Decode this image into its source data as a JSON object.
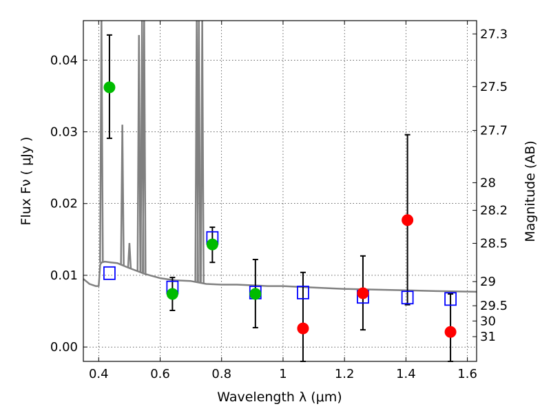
{
  "chart_data": {
    "type": "scatter",
    "xlabel": "Wavelength  λ (μm)",
    "ylabel": "Flux  Fν  ( μJy )",
    "y2label": "Magnitude (AB)",
    "xlim": [
      0.35,
      1.63
    ],
    "ylim": [
      -0.002,
      0.0455
    ],
    "grid": true,
    "x_ticks": [
      0.4,
      0.6,
      0.8,
      1.0,
      1.2,
      1.4,
      1.6
    ],
    "x_tick_labels": [
      "0.4",
      "0.6",
      "0.8",
      "1",
      "1.2",
      "1.4",
      "1.6"
    ],
    "y_ticks": [
      0.0,
      0.01,
      0.02,
      0.03,
      0.04
    ],
    "y_tick_labels": [
      "0.00",
      "0.01",
      "0.02",
      "0.03",
      "0.04"
    ],
    "mag_ticks": [
      "27.3",
      "27.5",
      "27.7",
      "28",
      "28.2",
      "28.5",
      "29",
      "29.5",
      "30",
      "31"
    ],
    "model_spectrum": {
      "color": "#808080",
      "x": [
        0.35,
        0.37,
        0.39,
        0.4,
        0.405,
        0.41,
        0.42,
        0.44,
        0.46,
        0.5,
        0.55,
        0.6,
        0.65,
        0.7,
        0.75,
        0.8,
        0.85,
        0.9,
        0.95,
        1.0,
        1.1,
        1.2,
        1.3,
        1.4,
        1.5,
        1.63
      ],
      "y": [
        0.0095,
        0.0088,
        0.0085,
        0.0085,
        0.0115,
        0.0118,
        0.0119,
        0.0118,
        0.0117,
        0.011,
        0.0102,
        0.0096,
        0.0093,
        0.0092,
        0.0088,
        0.0087,
        0.0087,
        0.0086,
        0.0085,
        0.0085,
        0.0083,
        0.0081,
        0.008,
        0.0079,
        0.0078,
        0.0077
      ],
      "emission_lines": [
        {
          "x": 0.409,
          "peak": 0.0455
        },
        {
          "x": 0.477,
          "peak": 0.031
        },
        {
          "x": 0.5,
          "peak": 0.0145
        },
        {
          "x": 0.531,
          "peak": 0.0435
        },
        {
          "x": 0.541,
          "peak": 0.0455
        },
        {
          "x": 0.548,
          "peak": 0.0455
        },
        {
          "x": 0.719,
          "peak": 0.0455
        },
        {
          "x": 0.726,
          "peak": 0.0455
        },
        {
          "x": 0.737,
          "peak": 0.0455
        }
      ]
    },
    "model_photometry": {
      "marker": "open-square",
      "color": "#0000ff",
      "points": [
        {
          "x": 0.435,
          "y": 0.0103
        },
        {
          "x": 0.64,
          "y": 0.0083
        },
        {
          "x": 0.77,
          "y": 0.0152
        },
        {
          "x": 0.91,
          "y": 0.0076
        },
        {
          "x": 1.065,
          "y": 0.0076
        },
        {
          "x": 1.26,
          "y": 0.007
        },
        {
          "x": 1.405,
          "y": 0.0069
        },
        {
          "x": 1.545,
          "y": 0.0067
        }
      ]
    },
    "detections": {
      "color": "#00bb00",
      "points": [
        {
          "x": 0.435,
          "y": 0.0362,
          "err_low": 0.0291,
          "err_high": 0.0435
        },
        {
          "x": 0.64,
          "y": 0.0074,
          "err_low": 0.0051,
          "err_high": 0.0097
        },
        {
          "x": 0.77,
          "y": 0.0143,
          "err_low": 0.0118,
          "err_high": 0.0167
        },
        {
          "x": 0.91,
          "y": 0.0074,
          "err_low": 0.0027,
          "err_high": 0.0122
        }
      ]
    },
    "non_detections": {
      "color": "#ff0000",
      "points": [
        {
          "x": 1.065,
          "y": 0.0026,
          "err_low": -0.002,
          "err_high": 0.0104
        },
        {
          "x": 1.26,
          "y": 0.0075,
          "err_low": 0.0024,
          "err_high": 0.0127
        },
        {
          "x": 1.405,
          "y": 0.0177,
          "err_low": 0.0059,
          "err_high": 0.0296
        },
        {
          "x": 1.545,
          "y": 0.0021,
          "err_low": -0.002,
          "err_high": 0.0074
        }
      ]
    }
  }
}
